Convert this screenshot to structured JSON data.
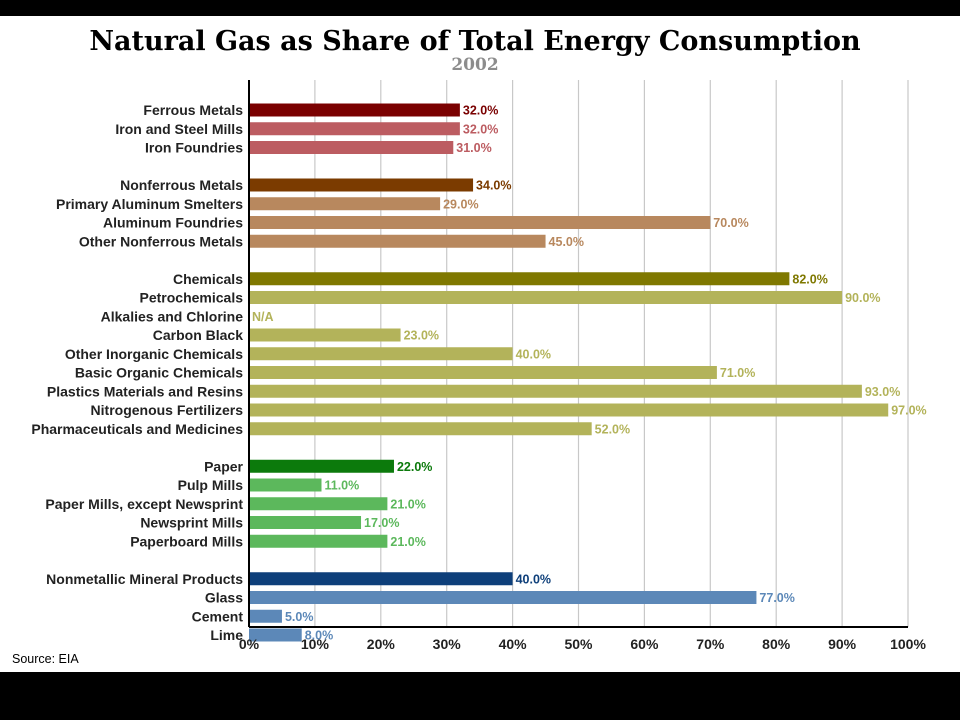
{
  "chart_data": {
    "type": "bar",
    "orientation": "horizontal",
    "title": "Natural Gas as Share of Total Energy Consumption",
    "subtitle": "2002",
    "source": "Source: EIA",
    "xlim": [
      0,
      100
    ],
    "x_ticks": [
      "0%",
      "10%",
      "20%",
      "30%",
      "40%",
      "50%",
      "60%",
      "70%",
      "80%",
      "90%",
      "100%"
    ],
    "grid": true,
    "groups": [
      {
        "name": "Ferrous Metals",
        "items": [
          {
            "category": "Ferrous Metals",
            "value": 32.0,
            "label": "32.0%",
            "bar_color": "#7a0000",
            "label_color": "#7a0000"
          },
          {
            "category": "Iron and Steel Mills",
            "value": 32.0,
            "label": "32.0%",
            "bar_color": "#bc5c61",
            "label_color": "#bc5c61"
          },
          {
            "category": "Iron Foundries",
            "value": 31.0,
            "label": "31.0%",
            "bar_color": "#bc5c61",
            "label_color": "#bc5c61"
          }
        ]
      },
      {
        "name": "Nonferrous Metals",
        "items": [
          {
            "category": "Nonferrous Metals",
            "value": 34.0,
            "label": "34.0%",
            "bar_color": "#7b3b00",
            "label_color": "#7b3b00"
          },
          {
            "category": "Primary Aluminum Smelters",
            "value": 29.0,
            "label": "29.0%",
            "bar_color": "#b8885e",
            "label_color": "#b8885e"
          },
          {
            "category": "Aluminum Foundries",
            "value": 70.0,
            "label": "70.0%",
            "bar_color": "#b8885e",
            "label_color": "#b8885e"
          },
          {
            "category": "Other Nonferrous Metals",
            "value": 45.0,
            "label": "45.0%",
            "bar_color": "#b8885e",
            "label_color": "#b8885e"
          }
        ]
      },
      {
        "name": "Chemicals",
        "items": [
          {
            "category": "Chemicals",
            "value": 82.0,
            "label": "82.0%",
            "bar_color": "#7f7800",
            "label_color": "#7f7800"
          },
          {
            "category": "Petrochemicals",
            "value": 90.0,
            "label": "90.0%",
            "bar_color": "#b3b35a",
            "label_color": "#b3b35a"
          },
          {
            "category": "Alkalies and Chlorine",
            "value": null,
            "label": "N/A",
            "bar_color": "#b3b35a",
            "label_color": "#b3b35a"
          },
          {
            "category": "Carbon Black",
            "value": 23.0,
            "label": "23.0%",
            "bar_color": "#b3b35a",
            "label_color": "#b3b35a"
          },
          {
            "category": "Other Inorganic Chemicals",
            "value": 40.0,
            "label": "40.0%",
            "bar_color": "#b3b35a",
            "label_color": "#b3b35a"
          },
          {
            "category": "Basic Organic Chemicals",
            "value": 71.0,
            "label": "71.0%",
            "bar_color": "#b3b35a",
            "label_color": "#b3b35a"
          },
          {
            "category": "Plastics Materials and Resins",
            "value": 93.0,
            "label": "93.0%",
            "bar_color": "#b3b35a",
            "label_color": "#b3b35a"
          },
          {
            "category": "Nitrogenous Fertilizers",
            "value": 97.0,
            "label": "97.0%",
            "bar_color": "#b3b35a",
            "label_color": "#b3b35a"
          },
          {
            "category": "Pharmaceuticals and Medicines",
            "value": 52.0,
            "label": "52.0%",
            "bar_color": "#b3b35a",
            "label_color": "#b3b35a"
          }
        ]
      },
      {
        "name": "Paper",
        "items": [
          {
            "category": "Paper",
            "value": 22.0,
            "label": "22.0%",
            "bar_color": "#0c7a0c",
            "label_color": "#0c7a0c"
          },
          {
            "category": "Pulp Mills",
            "value": 11.0,
            "label": "11.0%",
            "bar_color": "#5cb85c",
            "label_color": "#5cb85c"
          },
          {
            "category": "Paper Mills, except Newsprint",
            "value": 21.0,
            "label": "21.0%",
            "bar_color": "#5cb85c",
            "label_color": "#5cb85c"
          },
          {
            "category": "Newsprint Mills",
            "value": 17.0,
            "label": "17.0%",
            "bar_color": "#5cb85c",
            "label_color": "#5cb85c"
          },
          {
            "category": "Paperboard Mills",
            "value": 21.0,
            "label": "21.0%",
            "bar_color": "#5cb85c",
            "label_color": "#5cb85c"
          }
        ]
      },
      {
        "name": "Nonmetallic Mineral Products",
        "items": [
          {
            "category": "Nonmetallic Mineral Products",
            "value": 40.0,
            "label": "40.0%",
            "bar_color": "#0e3f7a",
            "label_color": "#0e3f7a"
          },
          {
            "category": "Glass",
            "value": 77.0,
            "label": "77.0%",
            "bar_color": "#5c88b8",
            "label_color": "#5c88b8"
          },
          {
            "category": "Cement",
            "value": 5.0,
            "label": "5.0%",
            "bar_color": "#5c88b8",
            "label_color": "#5c88b8"
          },
          {
            "category": "Lime",
            "value": 8.0,
            "label": "8.0%",
            "bar_color": "#5c88b8",
            "label_color": "#5c88b8"
          }
        ]
      }
    ]
  }
}
